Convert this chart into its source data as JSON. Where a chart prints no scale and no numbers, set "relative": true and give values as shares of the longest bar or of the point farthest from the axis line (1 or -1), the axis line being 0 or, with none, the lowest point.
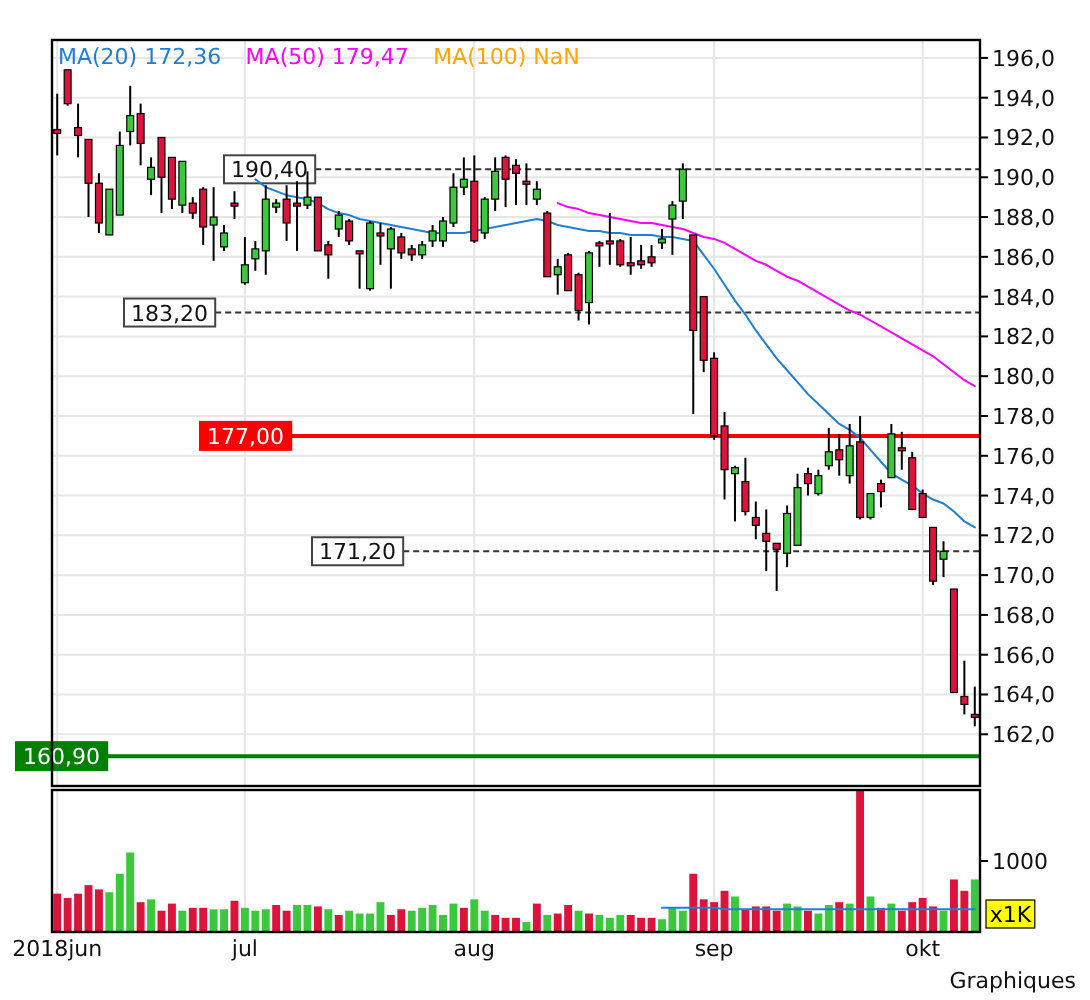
{
  "chart_data": [
    {
      "type": "candlestick",
      "categories": [
        null,
        null,
        null,
        null,
        null,
        null,
        null,
        null,
        null,
        null,
        null,
        null,
        null,
        null,
        null,
        null,
        null,
        null,
        null,
        null,
        null,
        null,
        null,
        null,
        null,
        null,
        null,
        null,
        null,
        null,
        null,
        null,
        null,
        null,
        null,
        null,
        null,
        null,
        null,
        null,
        null,
        null,
        null,
        null,
        null,
        null,
        null,
        null,
        null,
        null,
        null,
        null,
        null,
        null,
        null,
        null,
        null,
        null,
        null,
        null,
        null,
        null,
        null,
        null,
        null,
        null,
        null,
        null,
        null,
        null,
        null,
        null,
        null,
        null,
        null,
        null,
        null,
        null,
        null,
        null,
        null,
        null,
        null,
        null,
        null,
        null,
        null,
        null,
        null
      ],
      "ohlc": [
        [
          192.4,
          194.2,
          191.1,
          192.2
        ],
        [
          195.4,
          195.4,
          193.6,
          193.7
        ],
        [
          192.5,
          193.7,
          191.0,
          192.1
        ],
        [
          191.9,
          191.9,
          188.0,
          189.7
        ],
        [
          189.7,
          190.2,
          187.2,
          187.7
        ],
        [
          187.1,
          189.4,
          187.1,
          189.4
        ],
        [
          188.1,
          192.3,
          188.1,
          191.6
        ],
        [
          192.3,
          194.6,
          191.6,
          193.1
        ],
        [
          193.2,
          193.7,
          190.6,
          191.7
        ],
        [
          189.9,
          191.0,
          189.1,
          190.5
        ],
        [
          192.0,
          192.0,
          188.2,
          190.0
        ],
        [
          191.0,
          191.0,
          188.4,
          188.9
        ],
        [
          188.6,
          190.8,
          188.2,
          190.8
        ],
        [
          188.7,
          189.0,
          187.9,
          188.2
        ],
        [
          189.4,
          189.5,
          186.6,
          187.5
        ],
        [
          187.6,
          189.5,
          185.8,
          188.0
        ],
        [
          186.5,
          187.6,
          186.3,
          187.2
        ],
        [
          188.7,
          189.3,
          187.9,
          188.6
        ],
        [
          184.7,
          187.0,
          184.6,
          185.6
        ],
        [
          185.9,
          186.8,
          185.3,
          186.4
        ],
        [
          186.3,
          189.6,
          185.1,
          188.9
        ],
        [
          188.5,
          188.9,
          188.2,
          188.7
        ],
        [
          188.9,
          189.6,
          186.8,
          187.7
        ],
        [
          188.7,
          189.8,
          186.3,
          188.6
        ],
        [
          188.6,
          190.3,
          188.4,
          189.0
        ],
        [
          189.0,
          189.0,
          186.3,
          186.3
        ],
        [
          186.6,
          186.8,
          184.9,
          186.1
        ],
        [
          187.4,
          188.3,
          187.0,
          188.1
        ],
        [
          187.8,
          187.9,
          186.6,
          186.8
        ],
        [
          186.3,
          186.3,
          184.4,
          186.2
        ],
        [
          184.4,
          187.8,
          184.3,
          187.7
        ],
        [
          187.2,
          187.7,
          185.6,
          187.1
        ],
        [
          186.4,
          187.5,
          184.4,
          187.4
        ],
        [
          187.0,
          187.2,
          185.9,
          186.2
        ],
        [
          186.4,
          186.6,
          185.8,
          186.1
        ],
        [
          186.1,
          186.8,
          185.9,
          186.6
        ],
        [
          186.8,
          187.6,
          186.5,
          187.3
        ],
        [
          186.8,
          188.0,
          186.5,
          187.8
        ],
        [
          187.7,
          190.2,
          187.5,
          189.5
        ],
        [
          189.5,
          191.0,
          189.1,
          189.9
        ],
        [
          189.8,
          191.1,
          186.7,
          186.8
        ],
        [
          187.2,
          189.0,
          186.9,
          188.9
        ],
        [
          188.9,
          191.0,
          188.3,
          190.3
        ],
        [
          191.0,
          191.1,
          188.5,
          189.9
        ],
        [
          190.6,
          190.9,
          188.6,
          190.2
        ],
        [
          189.8,
          190.7,
          188.6,
          189.7
        ],
        [
          188.9,
          189.8,
          188.6,
          189.4
        ],
        [
          188.2,
          188.3,
          185.0,
          185.0
        ],
        [
          185.1,
          185.9,
          184.1,
          185.5
        ],
        [
          186.1,
          186.2,
          184.3,
          184.3
        ],
        [
          185.1,
          185.2,
          182.8,
          183.3
        ],
        [
          183.7,
          186.3,
          182.6,
          186.2
        ],
        [
          186.7,
          186.8,
          185.5,
          186.6
        ],
        [
          186.8,
          188.2,
          185.6,
          186.7
        ],
        [
          186.8,
          186.9,
          185.5,
          185.6
        ],
        [
          185.7,
          187.0,
          185.1,
          185.6
        ],
        [
          185.8,
          186.6,
          185.4,
          185.6
        ],
        [
          186.0,
          186.6,
          185.5,
          185.7
        ],
        [
          186.7,
          187.4,
          186.4,
          186.9
        ],
        [
          187.9,
          188.8,
          186.1,
          188.6
        ],
        [
          188.8,
          190.7,
          187.9,
          190.4
        ],
        [
          187.1,
          187.1,
          178.1,
          182.3
        ],
        [
          184.0,
          184.0,
          180.2,
          180.8
        ],
        [
          180.9,
          181.2,
          176.8,
          177.0
        ],
        [
          177.5,
          178.2,
          173.8,
          175.3
        ],
        [
          175.1,
          175.5,
          172.7,
          175.4
        ],
        [
          174.7,
          175.9,
          173.0,
          173.2
        ],
        [
          172.9,
          173.7,
          171.8,
          172.5
        ],
        [
          172.1,
          173.3,
          170.2,
          171.7
        ],
        [
          171.6,
          171.6,
          169.2,
          171.3
        ],
        [
          171.1,
          173.5,
          170.4,
          173.1
        ],
        [
          171.5,
          175.1,
          171.5,
          174.4
        ],
        [
          175.1,
          175.4,
          174.0,
          174.6
        ],
        [
          174.1,
          175.3,
          174.0,
          175.0
        ],
        [
          175.5,
          177.4,
          175.3,
          176.2
        ],
        [
          176.3,
          177.1,
          175.0,
          175.8
        ],
        [
          175.0,
          177.6,
          174.6,
          176.5
        ],
        [
          176.7,
          178.0,
          172.8,
          172.9
        ],
        [
          172.9,
          174.1,
          172.8,
          174.1
        ],
        [
          174.6,
          174.8,
          173.4,
          174.2
        ],
        [
          174.9,
          177.6,
          174.9,
          177.1
        ],
        [
          176.4,
          177.2,
          175.3,
          176.3
        ],
        [
          175.9,
          176.2,
          173.3,
          173.3
        ],
        [
          174.1,
          174.3,
          172.9,
          172.9
        ],
        [
          172.4,
          172.4,
          169.5,
          169.7
        ],
        [
          170.8,
          171.7,
          169.9,
          171.2
        ],
        [
          169.3,
          169.3,
          164.1,
          164.1
        ],
        [
          163.9,
          165.7,
          163.0,
          163.5
        ],
        [
          163.0,
          164.4,
          162.4,
          162.9
        ]
      ],
      "series": [
        {
          "name": "MA(20) 172,36",
          "type": "line",
          "color": "#1e7fd6",
          "values": [
            null,
            null,
            null,
            null,
            null,
            null,
            null,
            null,
            null,
            null,
            null,
            null,
            null,
            null,
            null,
            null,
            null,
            null,
            null,
            189.9,
            189.5,
            189.3,
            189.1,
            189.0,
            188.9,
            188.7,
            188.4,
            188.2,
            188.1,
            187.9,
            187.8,
            187.7,
            187.6,
            187.5,
            187.4,
            187.3,
            187.2,
            187.2,
            187.2,
            187.2,
            187.3,
            187.4,
            187.5,
            187.6,
            187.7,
            187.8,
            187.9,
            187.8,
            187.6,
            187.5,
            187.4,
            187.3,
            187.3,
            187.2,
            187.2,
            187.1,
            187.1,
            187.1,
            187.0,
            187.0,
            186.9,
            186.8,
            186.1,
            185.4,
            184.6,
            183.8,
            183.1,
            182.3,
            181.6,
            180.9,
            180.3,
            179.7,
            179.1,
            178.6,
            178.1,
            177.6,
            177.3,
            176.9,
            176.3,
            175.7,
            175.1,
            174.8,
            174.5,
            174.1,
            173.8,
            173.6,
            173.2,
            172.7,
            172.4
          ]
        },
        {
          "name": "MA(50) 179,47",
          "type": "line",
          "color": "#ff00ff",
          "values": [
            null,
            null,
            null,
            null,
            null,
            null,
            null,
            null,
            null,
            null,
            null,
            null,
            null,
            null,
            null,
            null,
            null,
            null,
            null,
            null,
            null,
            null,
            null,
            null,
            null,
            null,
            null,
            null,
            null,
            null,
            null,
            null,
            null,
            null,
            null,
            null,
            null,
            null,
            null,
            null,
            null,
            null,
            null,
            null,
            null,
            null,
            null,
            null,
            188.7,
            188.5,
            188.4,
            188.2,
            188.1,
            188.0,
            187.9,
            187.8,
            187.7,
            187.7,
            187.6,
            187.5,
            187.4,
            187.2,
            187.0,
            186.9,
            186.7,
            186.4,
            186.1,
            185.8,
            185.6,
            185.3,
            185.0,
            184.8,
            184.5,
            184.2,
            183.9,
            183.6,
            183.3,
            183.1,
            182.8,
            182.5,
            182.2,
            181.9,
            181.6,
            181.3,
            181.0,
            180.6,
            180.2,
            179.8,
            179.5
          ]
        }
      ],
      "annotations": [
        "MA(100) NaN"
      ],
      "ylim": [
        159.4,
        196.9
      ],
      "yticks": [
        {
          "value": 162,
          "label": "162,0"
        },
        {
          "value": 164,
          "label": "164,0"
        },
        {
          "value": 166,
          "label": "166,0"
        },
        {
          "value": 168,
          "label": "168,0"
        },
        {
          "value": 170,
          "label": "170,0"
        },
        {
          "value": 172,
          "label": "172,0"
        },
        {
          "value": 174,
          "label": "174,0"
        },
        {
          "value": 176,
          "label": "176,0"
        },
        {
          "value": 178,
          "label": "178,0"
        },
        {
          "value": 180,
          "label": "180,0"
        },
        {
          "value": 182,
          "label": "182,0"
        },
        {
          "value": 184,
          "label": "184,0"
        },
        {
          "value": 186,
          "label": "186,0"
        },
        {
          "value": 188,
          "label": "188,0"
        },
        {
          "value": 190,
          "label": "190,0"
        },
        {
          "value": 192,
          "label": "192,0"
        },
        {
          "value": 194,
          "label": "194,0"
        },
        {
          "value": 196,
          "label": "196,0"
        }
      ],
      "ref_lines": [
        {
          "axis": "y",
          "value": 190.4,
          "label": "190,40",
          "color": "#333333",
          "line_style": "dashed"
        },
        {
          "axis": "y",
          "value": 183.2,
          "label": "183,20",
          "color": "#333333",
          "line_style": "dashed"
        },
        {
          "axis": "y",
          "value": 171.2,
          "label": "171,20",
          "color": "#333333",
          "line_style": "dashed"
        },
        {
          "axis": "y",
          "value": 177,
          "label": "177,00",
          "color": "#ff0000",
          "line_style": "solid"
        },
        {
          "axis": "y",
          "value": 160.9,
          "label": "160,90",
          "color": "#008000",
          "line_style": "solid"
        }
      ],
      "grid": true,
      "legend": "top left",
      "tick_labels": "y"
    },
    {
      "type": "bar",
      "categories": [
        "2018jun",
        null,
        null,
        null,
        null,
        null,
        null,
        null,
        null,
        null,
        null,
        null,
        null,
        null,
        null,
        null,
        null,
        null,
        "jul",
        null,
        null,
        null,
        null,
        null,
        null,
        null,
        null,
        null,
        null,
        null,
        null,
        null,
        null,
        null,
        null,
        null,
        null,
        null,
        null,
        null,
        "aug",
        null,
        null,
        null,
        null,
        null,
        null,
        null,
        null,
        null,
        null,
        null,
        null,
        null,
        null,
        null,
        null,
        null,
        null,
        null,
        null,
        null,
        null,
        "sep",
        null,
        null,
        null,
        null,
        null,
        null,
        null,
        null,
        null,
        null,
        null,
        null,
        null,
        null,
        null,
        null,
        null,
        null,
        null,
        "okt",
        null,
        null,
        null,
        null,
        null
      ],
      "series": [
        {
          "type": "bar",
          "values": [
            0.27,
            0.24,
            0.27,
            0.33,
            0.3,
            0.28,
            0.41,
            0.56,
            0.21,
            0.23,
            0.15,
            0.2,
            0.15,
            0.17,
            0.17,
            0.16,
            0.16,
            0.22,
            0.17,
            0.15,
            0.16,
            0.19,
            0.15,
            0.19,
            0.19,
            0.18,
            0.16,
            0.12,
            0.15,
            0.13,
            0.13,
            0.21,
            0.12,
            0.16,
            0.15,
            0.17,
            0.19,
            0.12,
            0.2,
            0.17,
            0.23,
            0.15,
            0.12,
            0.1,
            0.1,
            0.07,
            0.2,
            0.12,
            0.13,
            0.19,
            0.15,
            0.13,
            0.12,
            0.1,
            0.12,
            0.12,
            0.1,
            0.1,
            0.09,
            0.17,
            0.15,
            0.41,
            0.23,
            0.21,
            0.29,
            0.25,
            0.16,
            0.18,
            0.18,
            0.15,
            0.2,
            0.18,
            0.15,
            0.13,
            0.19,
            0.21,
            0.2,
            1,
            0.25,
            0.17,
            0.2,
            0.15,
            0.21,
            0.24,
            0.18,
            0.15,
            0.37,
            0.29,
            0.37
          ],
          "colors": [
            "#dc143c",
            "#dc143c",
            "#dc143c",
            "#dc143c",
            "#dc143c",
            "#3cc83c",
            "#3cc83c",
            "#3cc83c",
            "#dc143c",
            "#3cc83c",
            "#dc143c",
            "#dc143c",
            "#3cc83c",
            "#dc143c",
            "#dc143c",
            "#3cc83c",
            "#3cc83c",
            "#dc143c",
            "#3cc83c",
            "#3cc83c",
            "#3cc83c",
            "#dc143c",
            "#dc143c",
            "#3cc83c",
            "#3cc83c",
            "#dc143c",
            "#3cc83c",
            "#dc143c",
            "#3cc83c",
            "#3cc83c",
            "#3cc83c",
            "#3cc83c",
            "#dc143c",
            "#dc143c",
            "#3cc83c",
            "#3cc83c",
            "#3cc83c",
            "#3cc83c",
            "#3cc83c",
            "#dc143c",
            "#3cc83c",
            "#3cc83c",
            "#dc143c",
            "#dc143c",
            "#dc143c",
            "#3cc83c",
            "#dc143c",
            "#3cc83c",
            "#dc143c",
            "#dc143c",
            "#3cc83c",
            "#dc143c",
            "#3cc83c",
            "#3cc83c",
            "#3cc83c",
            "#dc143c",
            "#dc143c",
            "#dc143c",
            "#3cc83c",
            "#3cc83c",
            "#3cc83c",
            "#dc143c",
            "#dc143c",
            "#dc143c",
            "#dc143c",
            "#3cc83c",
            "#dc143c",
            "#dc143c",
            "#dc143c",
            "#dc143c",
            "#3cc83c",
            "#3cc83c",
            "#dc143c",
            "#3cc83c",
            "#3cc83c",
            "#dc143c",
            "#3cc83c",
            "#dc143c",
            "#3cc83c",
            "#dc143c",
            "#3cc83c",
            "#dc143c",
            "#dc143c",
            "#dc143c",
            "#dc143c",
            "#3cc83c",
            "#dc143c",
            "#dc143c",
            "#3cc83c"
          ]
        },
        {
          "type": "line",
          "color": "#1e7fd6",
          "values": [
            null,
            null,
            null,
            null,
            null,
            null,
            null,
            null,
            null,
            null,
            null,
            null,
            null,
            null,
            null,
            null,
            null,
            null,
            null,
            null,
            null,
            null,
            null,
            null,
            null,
            null,
            null,
            null,
            null,
            null,
            null,
            null,
            null,
            null,
            null,
            null,
            null,
            null,
            null,
            null,
            null,
            null,
            null,
            null,
            null,
            null,
            null,
            null,
            null,
            null,
            null,
            null,
            null,
            null,
            null,
            null,
            null,
            null,
            0.17,
            0.17,
            0.17,
            0.17,
            0.17,
            0.17,
            0.16,
            0.16,
            0.16,
            0.16,
            0.16,
            0.16,
            0.16,
            0.16,
            0.16,
            0.16,
            0.16,
            0.16,
            0.16,
            0.16,
            0.16,
            0.16,
            0.16,
            0.16,
            0.16,
            0.16,
            0.16,
            0.16,
            0.16,
            0.16,
            0.16
          ]
        }
      ],
      "relative": true,
      "annotations": [
        "1000",
        "x1K",
        "Graphiques"
      ],
      "grid": "x"
    }
  ]
}
